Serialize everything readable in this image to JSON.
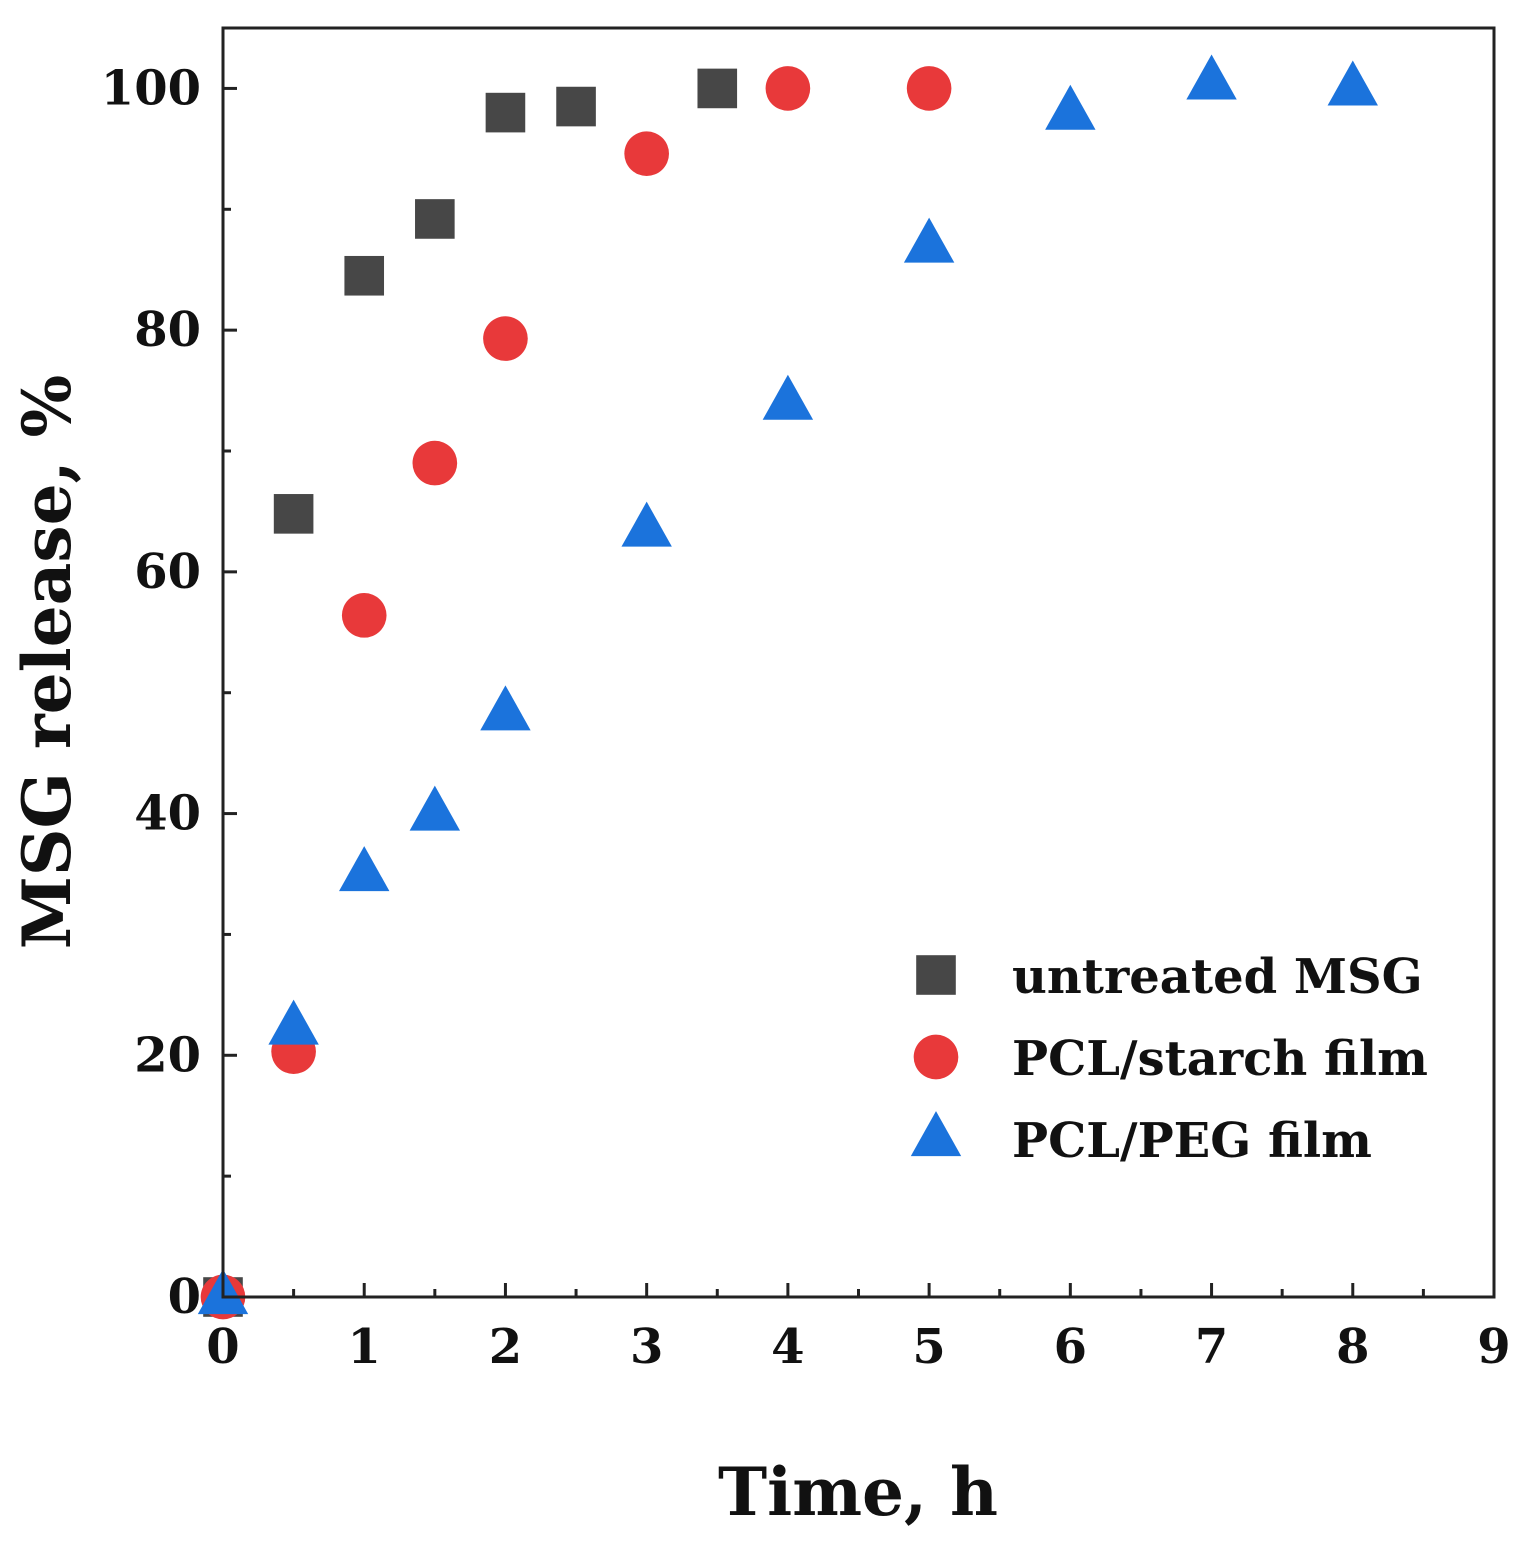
{
  "chart_data": {
    "type": "scatter",
    "title": "",
    "xlabel": "Time, h",
    "ylabel": "MSG release, %",
    "xlim": [
      0,
      9
    ],
    "ylim": [
      0,
      105
    ],
    "x_ticks": [
      "0",
      "1",
      "2",
      "3",
      "4",
      "5",
      "6",
      "7",
      "8",
      "9"
    ],
    "y_ticks": [
      "0",
      "20",
      "40",
      "60",
      "80",
      "100"
    ],
    "grid": false,
    "legend_position": "bottom-right",
    "series": [
      {
        "name": "untreated MSG",
        "marker": "square",
        "color": "#474747",
        "points": [
          {
            "x": 0,
            "y": 0
          },
          {
            "x": 0.5,
            "y": 64.8
          },
          {
            "x": 1,
            "y": 84.5
          },
          {
            "x": 1.5,
            "y": 89.2
          },
          {
            "x": 2,
            "y": 98.0
          },
          {
            "x": 2.5,
            "y": 98.5
          },
          {
            "x": 3.5,
            "y": 100.0
          }
        ]
      },
      {
        "name": "PCL/starch film",
        "marker": "circle",
        "color": "#e8393a",
        "points": [
          {
            "x": 0,
            "y": 0
          },
          {
            "x": 0.5,
            "y": 20.3
          },
          {
            "x": 1,
            "y": 56.4
          },
          {
            "x": 1.5,
            "y": 69.0
          },
          {
            "x": 2,
            "y": 79.3
          },
          {
            "x": 3,
            "y": 94.6
          },
          {
            "x": 4,
            "y": 100.0
          },
          {
            "x": 5,
            "y": 100.0
          }
        ]
      },
      {
        "name": "PCL/PEG film",
        "marker": "triangle",
        "color": "#1b73dc",
        "points": [
          {
            "x": 0,
            "y": 0
          },
          {
            "x": 0.5,
            "y": 22.3
          },
          {
            "x": 1,
            "y": 35.0
          },
          {
            "x": 1.5,
            "y": 40.0
          },
          {
            "x": 2,
            "y": 48.3
          },
          {
            "x": 3,
            "y": 63.5
          },
          {
            "x": 4,
            "y": 74.0
          },
          {
            "x": 5,
            "y": 87.0
          },
          {
            "x": 6,
            "y": 98.0
          },
          {
            "x": 7,
            "y": 100.5
          },
          {
            "x": 8,
            "y": 100.0
          }
        ]
      }
    ]
  }
}
